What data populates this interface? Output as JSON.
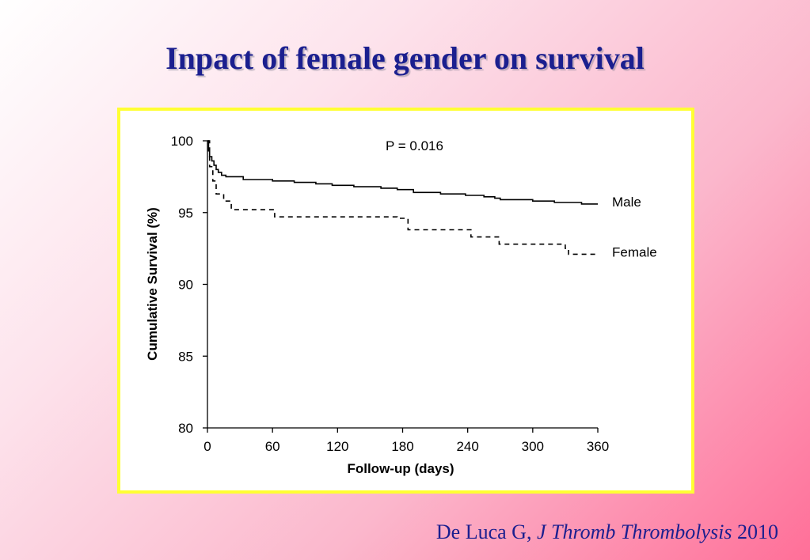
{
  "slide": {
    "title": "Inpact of female gender on survival",
    "citation": {
      "author": "De Luca G, ",
      "journal": "J Thromb Thrombolysis",
      "year": " 2010"
    }
  },
  "colors": {
    "title": "#1b1f8f",
    "frame_border": "#ffff33",
    "series": "#000000"
  },
  "chart_data": {
    "type": "line",
    "subtype": "kaplan-meier step curve",
    "annotation": "P = 0.016",
    "xlabel": "Follow-up (days)",
    "ylabel": "Cumulative Survival (%)",
    "xlim": [
      0,
      360
    ],
    "ylim": [
      80,
      100
    ],
    "xticks": [
      0,
      60,
      120,
      180,
      240,
      300,
      360
    ],
    "yticks": [
      80,
      85,
      90,
      95,
      100
    ],
    "grid": false,
    "legend": "inline labels at right end of each curve",
    "series": [
      {
        "name": "Male",
        "style": "solid",
        "points": [
          [
            0,
            100
          ],
          [
            1,
            99.3
          ],
          [
            2,
            98.9
          ],
          [
            4,
            98.6
          ],
          [
            6,
            98.3
          ],
          [
            8,
            98.0
          ],
          [
            10,
            97.8
          ],
          [
            13,
            97.6
          ],
          [
            17,
            97.5
          ],
          [
            33,
            97.3
          ],
          [
            60,
            97.2
          ],
          [
            80,
            97.1
          ],
          [
            100,
            97.0
          ],
          [
            115,
            96.9
          ],
          [
            135,
            96.8
          ],
          [
            160,
            96.7
          ],
          [
            175,
            96.6
          ],
          [
            190,
            96.4
          ],
          [
            215,
            96.3
          ],
          [
            238,
            96.2
          ],
          [
            255,
            96.1
          ],
          [
            265,
            96.0
          ],
          [
            270,
            95.9
          ],
          [
            300,
            95.8
          ],
          [
            320,
            95.7
          ],
          [
            345,
            95.6
          ],
          [
            360,
            95.6
          ]
        ]
      },
      {
        "name": "Female",
        "style": "dashed",
        "points": [
          [
            0,
            100
          ],
          [
            2,
            98.2
          ],
          [
            5,
            97.2
          ],
          [
            8,
            96.3
          ],
          [
            15,
            95.8
          ],
          [
            22,
            95.2
          ],
          [
            62,
            94.7
          ],
          [
            175,
            94.6
          ],
          [
            185,
            93.8
          ],
          [
            243,
            93.3
          ],
          [
            269,
            92.8
          ],
          [
            330,
            92.5
          ],
          [
            333,
            92.1
          ],
          [
            360,
            92.1
          ]
        ]
      }
    ]
  }
}
